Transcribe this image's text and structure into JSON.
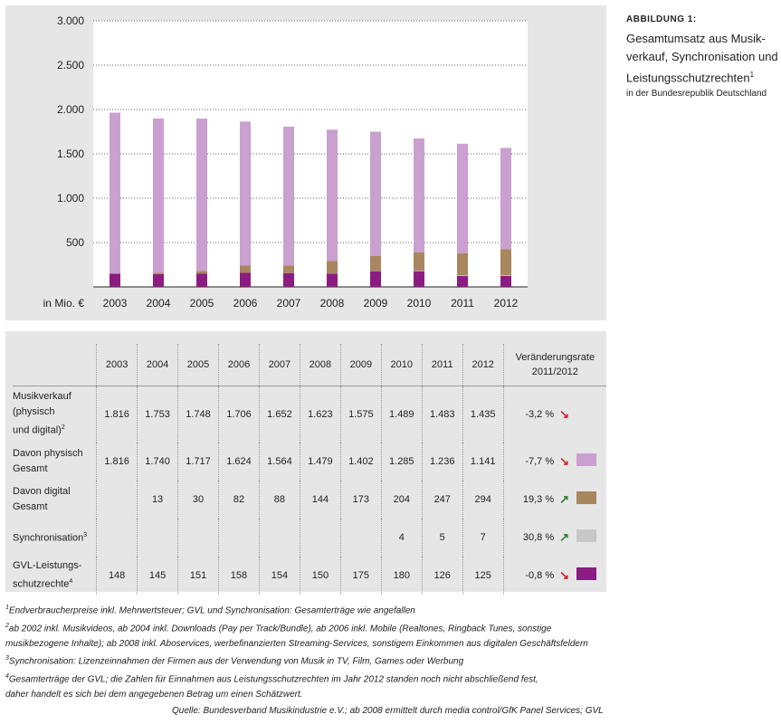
{
  "figure": {
    "number": "ABBILDUNG 1:",
    "title_lines": [
      "Gesamtumsatz aus Musik-",
      "verkauf, Synchronisation und",
      "Leistungsschutzrechten"
    ],
    "title_sup": "1",
    "subtitle": "in der Bundesrepublik Deutschland"
  },
  "chart_data": {
    "type": "bar",
    "stacked": true,
    "categories": [
      "2003",
      "2004",
      "2005",
      "2006",
      "2007",
      "2008",
      "2009",
      "2010",
      "2011",
      "2012"
    ],
    "series": [
      {
        "key": "gvl",
        "color": "#8c1c82",
        "values": [
          148,
          145,
          151,
          158,
          154,
          150,
          175,
          180,
          126,
          125
        ]
      },
      {
        "key": "sync",
        "color": "#c8c8c8",
        "values": [
          0,
          0,
          0,
          0,
          0,
          0,
          0,
          4,
          5,
          7
        ]
      },
      {
        "key": "digital",
        "color": "#a8865e",
        "values": [
          0,
          13,
          30,
          82,
          88,
          144,
          173,
          204,
          247,
          294
        ]
      },
      {
        "key": "physical",
        "color": "#c9a0cf",
        "values": [
          1816,
          1740,
          1717,
          1624,
          1564,
          1479,
          1402,
          1285,
          1236,
          1141
        ]
      }
    ],
    "ylim": [
      0,
      3000
    ],
    "yticks": [
      500,
      1000,
      1500,
      2000,
      2500,
      3000
    ],
    "ytick_labels": [
      "500",
      "1.000",
      "1.500",
      "2.000",
      "2.500",
      "3.000"
    ],
    "unit_label": "in Mio. €",
    "grid": true
  },
  "table": {
    "years": [
      "2003",
      "2004",
      "2005",
      "2006",
      "2007",
      "2008",
      "2009",
      "2010",
      "2011",
      "2012"
    ],
    "rate_header": [
      "Veränderungsrate",
      "2011/2012"
    ],
    "rows": [
      {
        "label_lines": [
          "Musikverkauf",
          "(physisch",
          "und digital)"
        ],
        "sup": "2",
        "values": [
          "1.816",
          "1.753",
          "1.748",
          "1.706",
          "1.652",
          "1.623",
          "1.575",
          "1.489",
          "1.483",
          "1.435"
        ],
        "rate": "-3,2 %",
        "trend": "down",
        "swatch": ""
      },
      {
        "label_lines": [
          "Davon physisch",
          "Gesamt"
        ],
        "sup": "",
        "values": [
          "1.816",
          "1.740",
          "1.717",
          "1.624",
          "1.564",
          "1.479",
          "1.402",
          "1.285",
          "1.236",
          "1.141"
        ],
        "rate": "-7,7 %",
        "trend": "down",
        "swatch": "#c9a0cf"
      },
      {
        "label_lines": [
          "Davon digital",
          "Gesamt"
        ],
        "sup": "",
        "values": [
          "",
          "13",
          "30",
          "82",
          "88",
          "144",
          "173",
          "204",
          "247",
          "294"
        ],
        "rate": "19,3 %",
        "trend": "up",
        "swatch": "#a8865e"
      },
      {
        "label_lines": [
          "Synchronisation"
        ],
        "sup": "3",
        "values": [
          "",
          "",
          "",
          "",
          "",
          "",
          "",
          "4",
          "5",
          "7"
        ],
        "rate": "30,8 %",
        "trend": "up",
        "swatch": "#c8c8c8"
      },
      {
        "label_lines": [
          "GVL-Leistungs-",
          "schutzrechte"
        ],
        "sup": "4",
        "values": [
          "148",
          "145",
          "151",
          "158",
          "154",
          "150",
          "175",
          "180",
          "126",
          "125"
        ],
        "rate": "-0,8 %",
        "trend": "down",
        "swatch": "#8c1c82"
      }
    ],
    "trend_colors": {
      "down": "#d0202a",
      "up": "#2e7d32"
    }
  },
  "footnotes": [
    {
      "sup": "1",
      "text": "Endverbraucherpreise inkl. Mehrwertsteuer; GVL und Synchronisation: Gesamterträge wie angefallen"
    },
    {
      "sup": "2",
      "text": "ab 2002 inkl. Musikvideos, ab 2004 inkl. Downloads (Pay per Track/Bundle), ab 2006 inkl. Mobile (Realtones, Ringback Tunes, sonstige"
    },
    {
      "sup": "",
      "text": "musikbezogene Inhalte); ab 2008 inkl. Aboservices, werbefinanzierten Streaming-Services, sonstigem Einkommen aus digitalen Geschäftsfeldern"
    },
    {
      "sup": "3",
      "text": "Synchronisation: Lizenzeinnahmen der Firmen aus der Verwendung von Musik in TV, Film, Games oder Werbung"
    },
    {
      "sup": "4",
      "text": "Gesamterträge der GVL; die Zahlen für Einnahmen aus Leistungsschutzrechten im Jahr 2012 standen noch nicht abschließend fest,"
    },
    {
      "sup": "",
      "text": "daher handelt es sich bei dem angegebenen Betrag um einen Schätzwert."
    }
  ],
  "source": "Quelle: Bundesverband Musikindustrie e.V.; ab 2008 ermittelt durch media control/GfK Panel Services; GVL"
}
